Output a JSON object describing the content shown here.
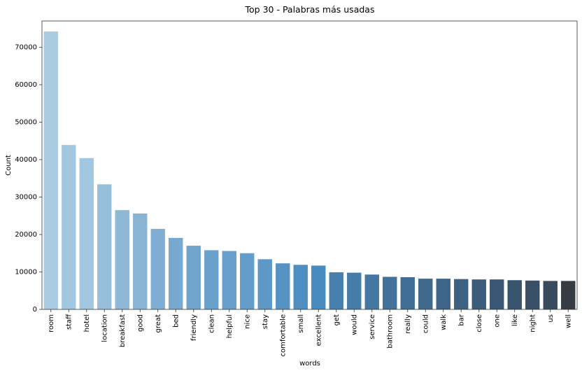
{
  "chart_data": {
    "type": "bar",
    "title": "Top 30 - Palabras más usadas",
    "xlabel": "words",
    "ylabel": "Count",
    "ylim": [
      0,
      77000
    ],
    "yticks": [
      0,
      10000,
      20000,
      30000,
      40000,
      50000,
      60000,
      70000
    ],
    "grid": false,
    "categories": [
      "room",
      "staff",
      "hotel",
      "location",
      "breakfast",
      "good",
      "great",
      "bed",
      "friendly",
      "clean",
      "helpful",
      "nice",
      "stay",
      "comfortable",
      "small",
      "excellent",
      "get",
      "would",
      "service",
      "bathroom",
      "really",
      "could",
      "walk",
      "bar",
      "close",
      "one",
      "like",
      "night",
      "us",
      "well"
    ],
    "values": [
      74200,
      43900,
      40400,
      33400,
      26500,
      25600,
      21500,
      19100,
      17000,
      15800,
      15600,
      15000,
      13400,
      12300,
      11900,
      11700,
      9900,
      9800,
      9300,
      8700,
      8600,
      8200,
      8200,
      8100,
      8000,
      8000,
      7800,
      7700,
      7600,
      7600
    ],
    "colors": [
      "#a9cce3",
      "#a1c8e0",
      "#a1c8e0",
      "#97bfdb",
      "#8fb7d6",
      "#8ab4d4",
      "#80aed2",
      "#77a8cf",
      "#70a4cd",
      "#6aa1cb",
      "#679fca",
      "#649dc9",
      "#5e98c6",
      "#5693c3",
      "#4f8ec0",
      "#4a8bbf",
      "#4880ad",
      "#467ca8",
      "#4478a2",
      "#42729a",
      "#416e94",
      "#3f698c",
      "#3e6587",
      "#3c6181",
      "#3b5c7a",
      "#395774",
      "#38536e",
      "#384f66",
      "#374a5e",
      "#373c44"
    ]
  }
}
